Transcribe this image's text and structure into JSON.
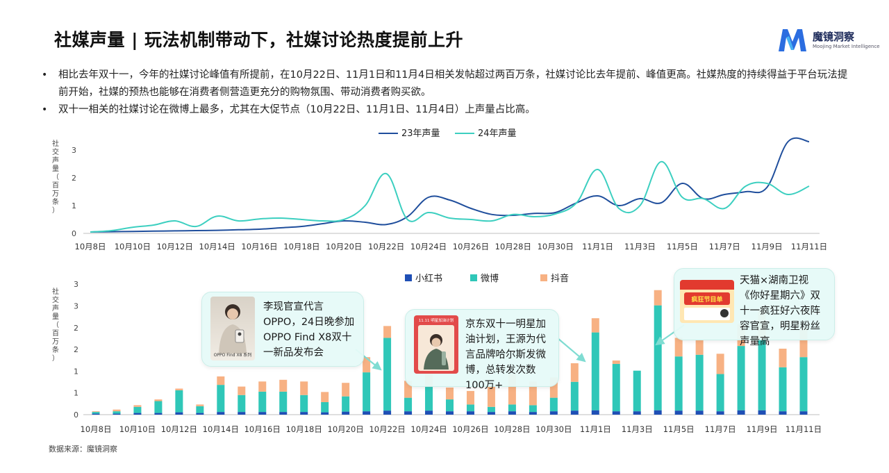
{
  "page": {
    "title": "社媒声量 | 玩法机制带动下，社媒讨论热度提前上升",
    "brand_name": "魔镜洞察",
    "brand_sub": "Moojing Market Intelligence",
    "bullets": [
      "相比去年双十一，今年的社媒讨论峰值有所提前，在10月22日、11月1日和11月4日相关发帖超过两百万条，社媒讨论比去年提前、峰值更高。社媒热度的持续得益于平台玩法提前开始，社媒的预热也能够在消费者侧营造更充分的购物氛围、带动消费者购买欲。",
      "双十一相关的社媒讨论在微博上最多，尤其在大促节点（10月22日、11月1日、11月4日）上声量占比高。"
    ],
    "source": "数据来源：魔镜洞察"
  },
  "colors": {
    "line_23": "#1f4e9c",
    "line_24": "#3ccfc0",
    "xhs": "#1f4fb5",
    "weibo": "#2fc7b8",
    "douyin": "#f7b183",
    "brand": "#2b6de0"
  },
  "chart_data": [
    {
      "type": "line",
      "ylabel": "社交声量（百万条）",
      "ylim": [
        0,
        3.4
      ],
      "yticks": [
        0,
        1,
        2,
        3
      ],
      "xtick_labels": [
        "10月8日",
        "10月10日",
        "10月12日",
        "10月14日",
        "10月16日",
        "10月18日",
        "10月20日",
        "10月22日",
        "10月24日",
        "10月26日",
        "10月28日",
        "10月30日",
        "11月1日",
        "11月3日",
        "11月5日",
        "11月7日",
        "11月9日",
        "11月11日"
      ],
      "x": [
        "10月8日",
        "10月9日",
        "10月10日",
        "10月11日",
        "10月12日",
        "10月13日",
        "10月14日",
        "10月15日",
        "10月16日",
        "10月17日",
        "10月18日",
        "10月19日",
        "10月20日",
        "10月21日",
        "10月22日",
        "10月23日",
        "10月24日",
        "10月25日",
        "10月26日",
        "10月27日",
        "10月28日",
        "10月29日",
        "10月30日",
        "10月31日",
        "11月1日",
        "11月2日",
        "11月3日",
        "11月4日",
        "11月5日",
        "11月6日",
        "11月7日",
        "11月8日",
        "11月9日",
        "11月10日",
        "11月11日"
      ],
      "legend_position": "top",
      "series": [
        {
          "name": "23年声量",
          "values": [
            0.05,
            0.06,
            0.07,
            0.08,
            0.09,
            0.1,
            0.11,
            0.13,
            0.15,
            0.2,
            0.25,
            0.35,
            0.45,
            0.4,
            0.32,
            0.6,
            1.3,
            1.2,
            0.9,
            0.68,
            0.65,
            0.72,
            0.75,
            1.1,
            1.35,
            1.0,
            1.25,
            1.1,
            1.8,
            1.25,
            1.4,
            1.5,
            1.65,
            3.3,
            3.3
          ]
        },
        {
          "name": "24年声量",
          "values": [
            0.05,
            0.1,
            0.22,
            0.3,
            0.45,
            0.25,
            0.62,
            0.45,
            0.52,
            0.55,
            0.5,
            0.45,
            0.5,
            1.0,
            2.15,
            0.5,
            0.75,
            0.55,
            0.5,
            0.45,
            0.68,
            0.6,
            0.7,
            1.1,
            2.3,
            0.9,
            1.0,
            2.58,
            1.3,
            1.25,
            0.9,
            1.7,
            1.8,
            1.4,
            1.7
          ]
        }
      ]
    },
    {
      "type": "bar",
      "stacked": true,
      "ylabel": "社交声量（百万条）",
      "ylim": [
        0,
        3.9
      ],
      "ytick_labels": [
        "0",
        "1",
        "1",
        "2",
        "2",
        "3",
        "3"
      ],
      "xtick_labels": [
        "10月8日",
        "10月10日",
        "10月12日",
        "10月14日",
        "10月16日",
        "10月18日",
        "10月20日",
        "10月22日",
        "10月24日",
        "10月26日",
        "10月28日",
        "10月30日",
        "11月1日",
        "11月3日",
        "11月5日",
        "11月7日",
        "11月9日",
        "11月11日"
      ],
      "categories": [
        "10月8日",
        "10月9日",
        "10月10日",
        "10月11日",
        "10月12日",
        "10月13日",
        "10月14日",
        "10月15日",
        "10月16日",
        "10月17日",
        "10月18日",
        "10月19日",
        "10月20日",
        "10月21日",
        "10月22日",
        "10月23日",
        "10月24日",
        "10月25日",
        "10月26日",
        "10月27日",
        "10月28日",
        "10月29日",
        "10月30日",
        "10月31日",
        "11月1日",
        "11月2日",
        "11月3日",
        "11月4日",
        "11月5日",
        "11月6日",
        "11月7日",
        "11月8日",
        "11月9日",
        "11月10日",
        "11月11日"
      ],
      "legend_position": "top",
      "series": [
        {
          "name": "小红书",
          "values": [
            0.03,
            0.03,
            0.05,
            0.05,
            0.07,
            0.05,
            0.08,
            0.08,
            0.08,
            0.08,
            0.08,
            0.07,
            0.09,
            0.1,
            0.12,
            0.1,
            0.12,
            0.1,
            0.1,
            0.08,
            0.1,
            0.08,
            0.1,
            0.12,
            0.13,
            0.1,
            0.1,
            0.13,
            0.12,
            0.12,
            0.1,
            0.13,
            0.13,
            0.1,
            0.1
          ]
        },
        {
          "name": "微博",
          "values": [
            0.05,
            0.07,
            0.18,
            0.35,
            0.65,
            0.2,
            0.8,
            0.5,
            0.6,
            0.6,
            0.5,
            0.3,
            0.45,
            1.15,
            2.15,
            0.4,
            0.7,
            0.35,
            0.2,
            0.15,
            0.2,
            0.2,
            0.4,
            0.85,
            2.3,
            1.4,
            1.2,
            3.1,
            1.6,
            1.65,
            1.1,
            1.9,
            2.13,
            1.3,
            1.6
          ]
        },
        {
          "name": "抖音",
          "values": [
            0.02,
            0.05,
            0.05,
            0.05,
            0.05,
            0.05,
            0.25,
            0.25,
            0.3,
            0.35,
            0.4,
            0.3,
            0.4,
            0.45,
            0.35,
            0.5,
            0.55,
            0.35,
            0.4,
            0.6,
            0.9,
            0.7,
            0.6,
            0.55,
            0.42,
            0.1,
            0.0,
            0.45,
            0.55,
            0.45,
            0.6,
            0.65,
            0.85,
            0.55,
            0.85
          ]
        }
      ]
    }
  ],
  "callouts": [
    {
      "text": "李现官宣代言OPPO，24日晚参加OPPO Find X8双十一新品发布会",
      "image_caption": "OPPO Find X8 系列"
    },
    {
      "text": "京东双十一明星加油计划，王源为代言品牌哈尔斯发微博，总转发次数100万+",
      "image_caption": "11.11 明星加油计划"
    },
    {
      "text": "天猫×湖南卫视《你好星期六》双十一疯狂好六夜阵容官宣，明星粉丝声量高",
      "image_caption": "疯狂节目单"
    }
  ]
}
